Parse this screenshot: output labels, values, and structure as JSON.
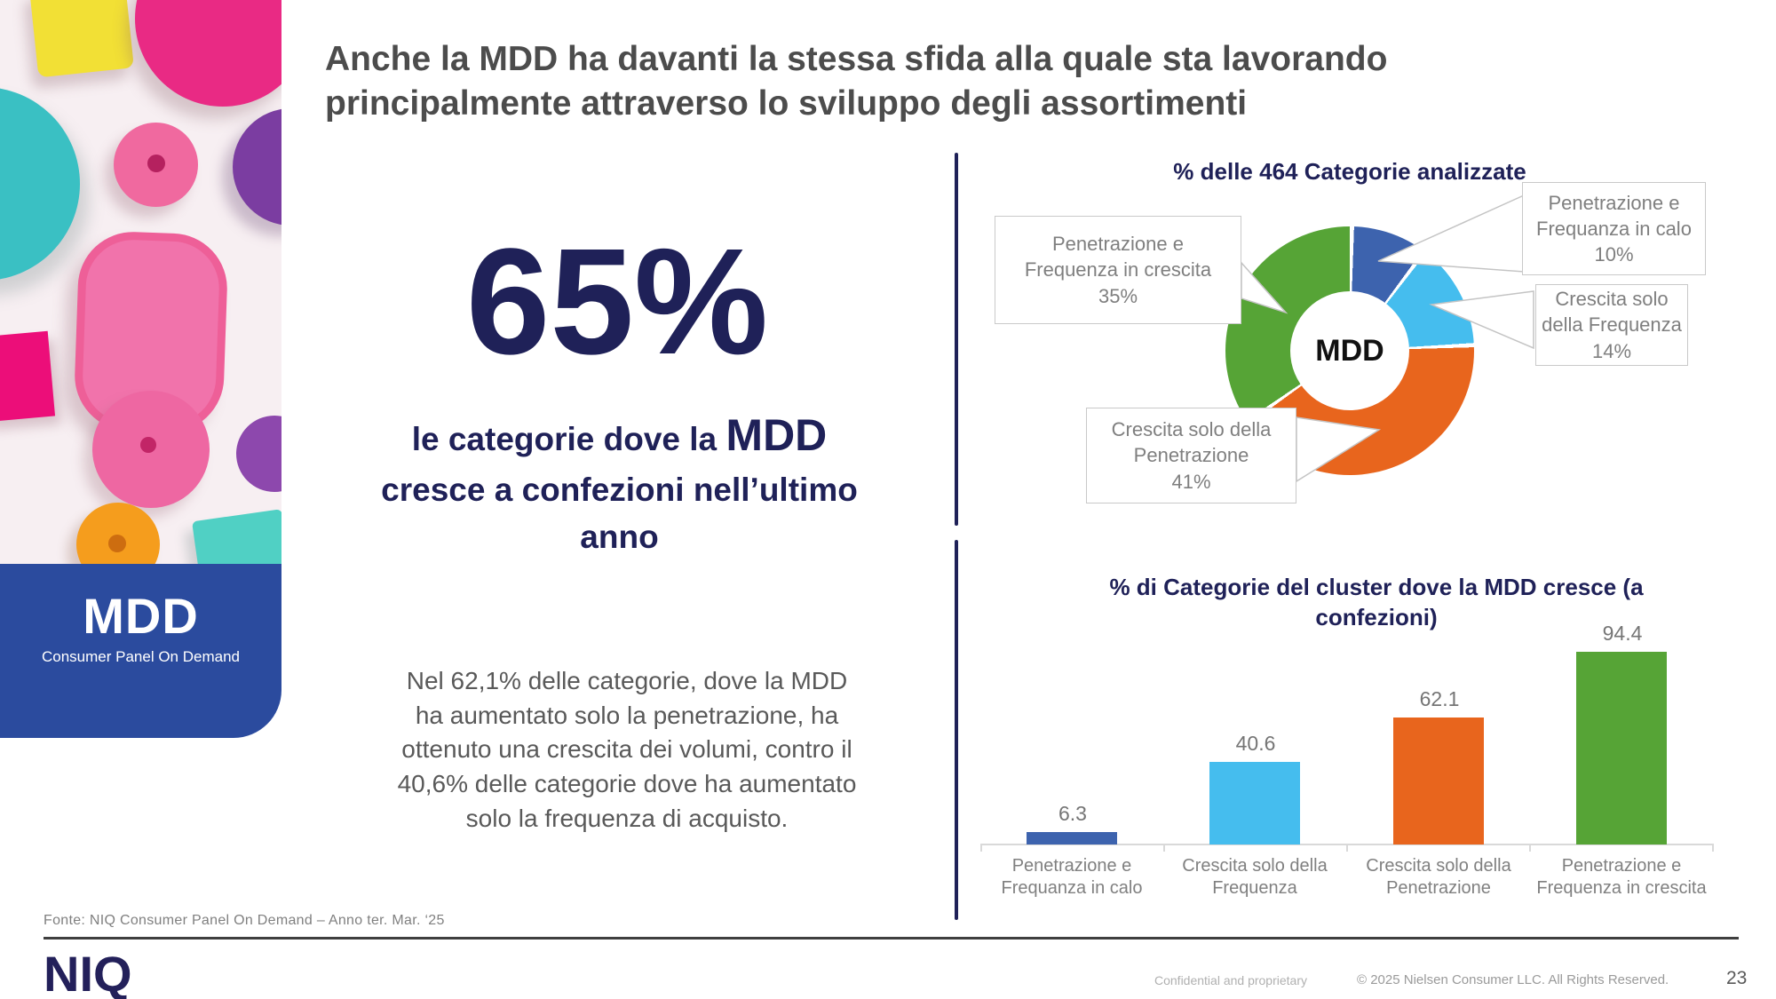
{
  "header": {
    "title": "Anche la MDD ha davanti la stessa sfida alla quale sta lavorando\nprincipalmente attraverso lo sviluppo degli assortimenti"
  },
  "sidebar": {
    "brand": "MDD",
    "subtitle": "Consumer Panel On Demand"
  },
  "key_stat": {
    "value": "65%",
    "caption_pre": "le categorie dove la ",
    "caption_mdd": "MDD",
    "caption_line2": "cresce a confezioni nell’ultimo",
    "caption_line3": "anno"
  },
  "body": {
    "paragraph": "Nel 62,1% delle categorie, dove la MDD\nha aumentato solo la penetrazione,  ha\nottenuto una crescita dei volumi, contro il\n40,6% delle categorie dove ha aumentato\nsolo la frequenza di acquisto."
  },
  "source_note": "Fonte: NIQ Consumer Panel On Demand – Anno ter. Mar. ‘25",
  "footer": {
    "logo": "NIQ",
    "confidential": "Confidential and proprietary",
    "copyright": "© 2025 Nielsen Consumer LLC. All Rights Reserved.",
    "page": "23"
  },
  "colors": {
    "navy": "#1f2158",
    "blue": "#3d63ae",
    "light_blue": "#45bdee",
    "orange": "#e8651d",
    "green": "#56a436",
    "panel_blue": "#2b4b9e"
  },
  "chart_data": [
    {
      "type": "pie",
      "donut": true,
      "title": "% delle 464 Categorie analizzate",
      "center_label": "MDD",
      "segments": [
        {
          "label": "Penetrazione e Frequanza in calo",
          "value": 10,
          "color": "#3d63ae"
        },
        {
          "label": "Crescita solo della Frequenza",
          "value": 14,
          "color": "#45bdee"
        },
        {
          "label": "Crescita solo della Penetrazione",
          "value": 41,
          "color": "#e8651d"
        },
        {
          "label": "Penetrazione e Frequenza in crescita",
          "value": 35,
          "color": "#56a436"
        }
      ],
      "callouts": [
        "Penetrazione e\nFrequanza in calo\n10%",
        "Crescita solo\ndella Frequenza\n14%",
        "Penetrazione e\nFrequenza in crescita\n35%",
        "Crescita solo della\nPenetrazione\n41%"
      ]
    },
    {
      "type": "bar",
      "title": "% di Categorie del cluster dove la MDD cresce (a\nconfezioni)",
      "categories": [
        "Penetrazione e Frequanza in calo",
        "Crescita solo della Frequenza",
        "Crescita solo della Penetrazione",
        "Penetrazione e Frequenza in crescita"
      ],
      "values": [
        6.3,
        40.6,
        62.1,
        94.4
      ],
      "colors": [
        "#3d63ae",
        "#45bdee",
        "#e8651d",
        "#56a436"
      ],
      "ylim": [
        0,
        100
      ],
      "grid": false,
      "data_labels": true,
      "legend": "none"
    }
  ]
}
